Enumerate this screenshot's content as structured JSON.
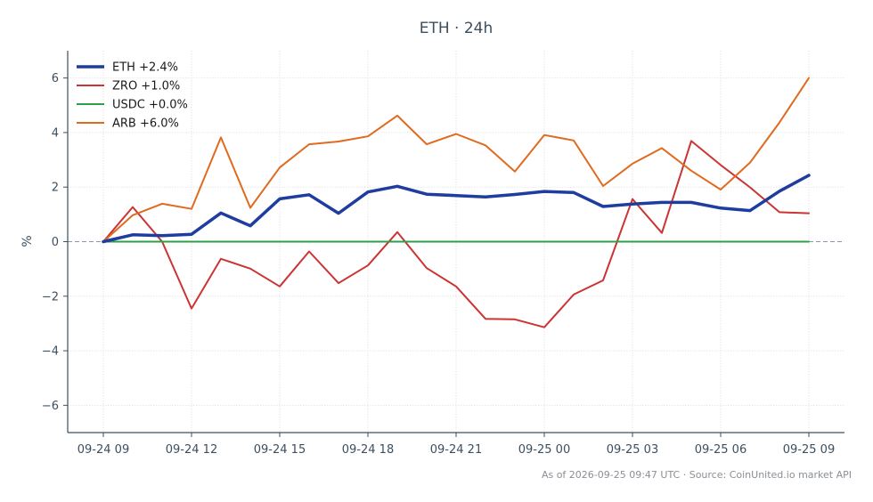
{
  "chart_data": {
    "type": "line",
    "title": "ETH · 24h",
    "ylabel": "%",
    "xlabel": "",
    "x_tick_labels": [
      "09-24 09",
      "09-24 12",
      "09-24 15",
      "09-24 18",
      "09-24 21",
      "09-25 00",
      "09-25 03",
      "09-25 06",
      "09-25 09"
    ],
    "x": [
      "09-24 09:00",
      "09-24 10:00",
      "09-24 11:00",
      "09-24 12:00",
      "09-24 13:00",
      "09-24 14:00",
      "09-24 15:00",
      "09-24 16:00",
      "09-24 17:00",
      "09-24 18:00",
      "09-24 19:00",
      "09-24 20:00",
      "09-24 21:00",
      "09-24 22:00",
      "09-24 23:00",
      "09-25 00:00",
      "09-25 01:00",
      "09-25 02:00",
      "09-25 03:00",
      "09-25 04:00",
      "09-25 05:00",
      "09-25 06:00",
      "09-25 07:00",
      "09-25 08:00",
      "09-25 09:00"
    ],
    "ylim": [
      -7,
      7
    ],
    "y_ticks": [
      -6,
      -4,
      -2,
      0,
      2,
      4,
      6
    ],
    "grid": true,
    "legend_position": "top-left",
    "series": [
      {
        "name": "ETH +2.4%",
        "color": "#1f3d9e",
        "width": 3.5,
        "values": [
          0.0,
          0.25,
          0.22,
          0.27,
          1.05,
          0.58,
          1.57,
          1.72,
          1.04,
          1.82,
          2.03,
          1.74,
          1.69,
          1.64,
          1.73,
          1.84,
          1.8,
          1.29,
          1.38,
          1.44,
          1.44,
          1.23,
          1.14,
          1.85,
          2.43
        ]
      },
      {
        "name": "ZRO +1.0%",
        "color": "#cc3333",
        "width": 2,
        "values": [
          0.0,
          1.27,
          0.0,
          -2.45,
          -0.63,
          -0.99,
          -1.64,
          -0.36,
          -1.52,
          -0.87,
          0.35,
          -0.97,
          -1.64,
          -2.83,
          -2.85,
          -3.14,
          -1.94,
          -1.42,
          1.56,
          0.32,
          3.69,
          2.81,
          1.99,
          1.08,
          1.04
        ]
      },
      {
        "name": "USDC +0.0%",
        "color": "#2ca048",
        "width": 2,
        "values": [
          0.0,
          0.0,
          0.0,
          0.0,
          0.0,
          0.0,
          0.0,
          0.0,
          0.0,
          0.0,
          0.0,
          0.0,
          0.0,
          0.0,
          0.0,
          0.0,
          0.0,
          0.0,
          0.0,
          0.0,
          0.0,
          0.0,
          0.0,
          0.0,
          0.0
        ]
      },
      {
        "name": "ARB +6.0%",
        "color": "#e06a1f",
        "width": 2,
        "values": [
          0.0,
          0.97,
          1.39,
          1.2,
          3.82,
          1.24,
          2.72,
          3.57,
          3.67,
          3.86,
          4.62,
          3.57,
          3.95,
          3.53,
          2.57,
          3.91,
          3.71,
          2.04,
          2.86,
          3.43,
          2.6,
          1.91,
          2.9,
          4.37,
          6.0
        ]
      }
    ]
  },
  "footer": "As of 2026-09-25 09:47 UTC · Source: CoinUnited.io market API"
}
